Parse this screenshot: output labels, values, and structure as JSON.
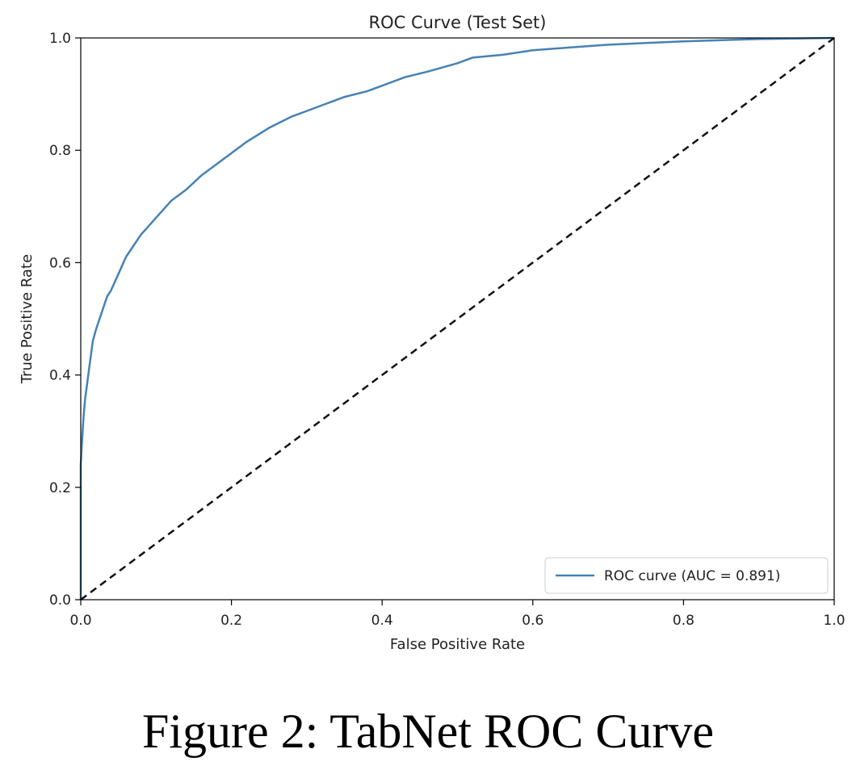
{
  "caption": "Figure 2: TabNet ROC Curve",
  "chart_data": {
    "type": "line",
    "title": "ROC Curve (Test Set)",
    "xlabel": "False Positive Rate",
    "ylabel": "True Positive Rate",
    "xlim": [
      0.0,
      1.0
    ],
    "ylim": [
      0.0,
      1.0
    ],
    "xticks": [
      "0.0",
      "0.2",
      "0.4",
      "0.6",
      "0.8",
      "1.0"
    ],
    "yticks": [
      "0.0",
      "0.2",
      "0.4",
      "0.6",
      "0.8",
      "1.0"
    ],
    "grid": false,
    "legend_position": "lower-right",
    "series": [
      {
        "name": "ROC curve (AUC = 0.891)",
        "color": "#4682b4",
        "style": "solid",
        "x": [
          0.0,
          0.0,
          0.002,
          0.004,
          0.006,
          0.008,
          0.01,
          0.013,
          0.016,
          0.02,
          0.025,
          0.03,
          0.035,
          0.04,
          0.05,
          0.06,
          0.07,
          0.08,
          0.09,
          0.1,
          0.11,
          0.12,
          0.14,
          0.16,
          0.18,
          0.2,
          0.22,
          0.25,
          0.28,
          0.3,
          0.32,
          0.35,
          0.38,
          0.4,
          0.43,
          0.46,
          0.5,
          0.52,
          0.56,
          0.6,
          0.65,
          0.7,
          0.75,
          0.8,
          0.85,
          0.9,
          0.95,
          1.0
        ],
        "y": [
          0.0,
          0.24,
          0.29,
          0.33,
          0.36,
          0.38,
          0.4,
          0.43,
          0.46,
          0.48,
          0.5,
          0.52,
          0.54,
          0.55,
          0.58,
          0.61,
          0.63,
          0.65,
          0.665,
          0.68,
          0.695,
          0.71,
          0.73,
          0.755,
          0.775,
          0.795,
          0.815,
          0.84,
          0.86,
          0.87,
          0.88,
          0.895,
          0.905,
          0.915,
          0.93,
          0.94,
          0.955,
          0.965,
          0.97,
          0.978,
          0.983,
          0.988,
          0.991,
          0.994,
          0.996,
          0.998,
          0.999,
          1.0
        ]
      },
      {
        "color": "#111111",
        "style": "dashed",
        "x": [
          0.0,
          1.0
        ],
        "y": [
          0.0,
          1.0
        ]
      }
    ]
  }
}
